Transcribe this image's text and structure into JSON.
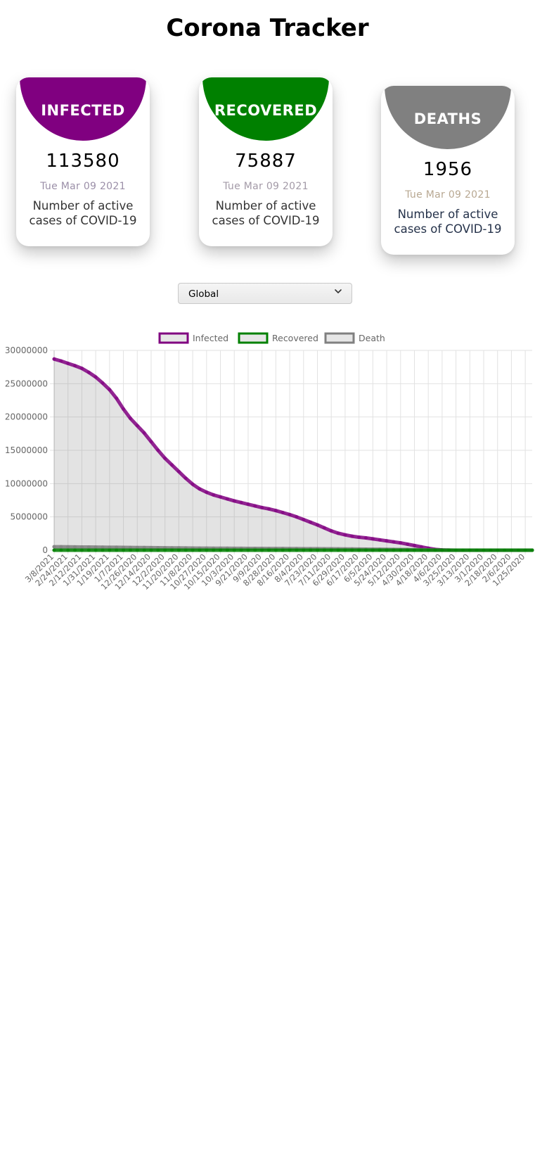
{
  "page": {
    "title": "Corona Tracker"
  },
  "cards": {
    "infected": {
      "label": "INFECTED",
      "count": "113580",
      "date": "Tue Mar 09 2021",
      "desc": "Number of active cases of COVID-19",
      "color": "#800080"
    },
    "recovered": {
      "label": "RECOVERED",
      "count": "75887",
      "date": "Tue Mar 09 2021",
      "desc": "Number of active cases of COVID-19",
      "color": "#008000"
    },
    "deaths": {
      "label": "DEATHS",
      "count": "1956",
      "date": "Tue Mar 09 2021",
      "desc": "Number of active cases of COVID-19",
      "color": "#808080"
    }
  },
  "country_select": {
    "selected": "Global",
    "icon": "chevron-down-icon"
  },
  "chart_data": {
    "type": "line",
    "fill": "area",
    "grid": true,
    "legend": "top-center",
    "ylim": [
      0,
      30000000
    ],
    "yticks": [
      0,
      5000000,
      10000000,
      15000000,
      20000000,
      25000000,
      30000000
    ],
    "x": [
      "3/8/2021",
      "3/2/2021",
      "2/24/2021",
      "2/18/2021",
      "2/12/2021",
      "2/6/2021",
      "1/31/2021",
      "1/25/2021",
      "1/19/2021",
      "1/13/2021",
      "1/7/2021",
      "1/1/2021",
      "12/26/2020",
      "12/20/2020",
      "12/14/2020",
      "12/8/2020",
      "12/2/2020",
      "11/26/2020",
      "11/20/2020",
      "11/14/2020",
      "11/8/2020",
      "11/2/2020",
      "10/27/2020",
      "10/21/2020",
      "10/15/2020",
      "10/9/2020",
      "10/3/2020",
      "9/27/2020",
      "9/21/2020",
      "9/15/2020",
      "9/9/2020",
      "9/3/2020",
      "8/28/2020",
      "8/22/2020",
      "8/16/2020",
      "8/10/2020",
      "8/4/2020",
      "7/29/2020",
      "7/23/2020",
      "7/17/2020",
      "7/11/2020",
      "7/5/2020",
      "6/29/2020",
      "6/23/2020",
      "6/17/2020",
      "6/11/2020",
      "6/5/2020",
      "5/30/2020",
      "5/24/2020",
      "5/18/2020",
      "5/12/2020",
      "5/6/2020",
      "4/30/2020",
      "4/24/2020",
      "4/18/2020",
      "4/12/2020",
      "4/6/2020",
      "3/31/2020",
      "3/25/2020",
      "3/19/2020",
      "3/13/2020",
      "3/7/2020",
      "3/1/2020",
      "2/24/2020",
      "2/18/2020",
      "2/12/2020",
      "2/6/2020",
      "1/31/2020",
      "1/25/2020",
      "1/22/2020"
    ],
    "x_tick_labels_shown": [
      "3/8/2021",
      "2/24/2021",
      "2/12/2021",
      "1/31/2021",
      "1/19/2021",
      "1/7/2021",
      "12/26/2020",
      "12/14/2020",
      "12/2/2020",
      "11/20/2020",
      "11/8/2020",
      "10/27/2020",
      "10/15/2020",
      "10/3/2020",
      "9/21/2020",
      "9/9/2020",
      "8/28/2020",
      "8/16/2020",
      "8/4/2020",
      "7/23/2020",
      "7/11/2020",
      "6/29/2020",
      "6/17/2020",
      "6/5/2020",
      "5/24/2020",
      "5/12/2020",
      "4/30/2020",
      "4/18/2020",
      "4/6/2020",
      "3/25/2020",
      "3/13/2020",
      "3/1/2020",
      "2/18/2020",
      "2/6/2020",
      "1/25/2020"
    ],
    "series": [
      {
        "name": "Infected",
        "color": "#800080",
        "values": [
          28700000,
          28400000,
          28050000,
          27700000,
          27300000,
          26700000,
          26000000,
          25100000,
          24100000,
          22800000,
          21200000,
          19800000,
          18700000,
          17600000,
          16300000,
          15000000,
          13800000,
          12800000,
          11800000,
          10800000,
          9900000,
          9200000,
          8700000,
          8300000,
          8000000,
          7700000,
          7400000,
          7150000,
          6900000,
          6650000,
          6400000,
          6200000,
          5950000,
          5650000,
          5350000,
          5000000,
          4600000,
          4200000,
          3800000,
          3350000,
          2900000,
          2550000,
          2300000,
          2100000,
          1950000,
          1850000,
          1700000,
          1550000,
          1400000,
          1250000,
          1100000,
          900000,
          700000,
          500000,
          300000,
          120000,
          40000,
          10000,
          0,
          0,
          0,
          0,
          0,
          0,
          0,
          0,
          0,
          0,
          0,
          0
        ]
      },
      {
        "name": "Recovered",
        "color": "#008000",
        "values": [
          0,
          0,
          0,
          0,
          0,
          0,
          0,
          0,
          0,
          0,
          0,
          0,
          0,
          0,
          0,
          0,
          0,
          0,
          0,
          0,
          0,
          0,
          0,
          0,
          0,
          0,
          0,
          0,
          0,
          0,
          0,
          0,
          0,
          0,
          0,
          0,
          0,
          0,
          0,
          0,
          0,
          0,
          0,
          0,
          0,
          0,
          0,
          0,
          0,
          0,
          0,
          0,
          0,
          0,
          0,
          0,
          0,
          0,
          0,
          0,
          0,
          0,
          0,
          0,
          0,
          0,
          0,
          0,
          0,
          0
        ]
      },
      {
        "name": "Death",
        "color": "#808080",
        "values": [
          520000,
          510000,
          500000,
          490000,
          480000,
          470000,
          460000,
          450000,
          440000,
          430000,
          420000,
          410000,
          400000,
          390000,
          380000,
          370000,
          360000,
          350000,
          340000,
          330000,
          320000,
          310000,
          300000,
          295000,
          290000,
          285000,
          280000,
          275000,
          270000,
          265000,
          260000,
          255000,
          250000,
          245000,
          240000,
          235000,
          230000,
          225000,
          220000,
          215000,
          210000,
          200000,
          190000,
          180000,
          170000,
          160000,
          150000,
          140000,
          130000,
          120000,
          110000,
          100000,
          80000,
          60000,
          40000,
          20000,
          10000,
          5000,
          2000,
          0,
          0,
          0,
          0,
          0,
          0,
          0,
          0,
          0,
          0,
          0
        ]
      }
    ]
  }
}
